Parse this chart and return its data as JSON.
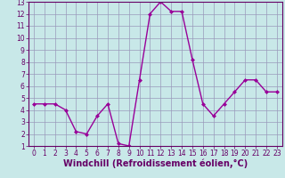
{
  "x": [
    0,
    1,
    2,
    3,
    4,
    5,
    6,
    7,
    8,
    9,
    10,
    11,
    12,
    13,
    14,
    15,
    16,
    17,
    18,
    19,
    20,
    21,
    22,
    23
  ],
  "y": [
    4.5,
    4.5,
    4.5,
    4.0,
    2.2,
    2.0,
    3.5,
    4.5,
    1.2,
    1.0,
    6.5,
    12.0,
    13.0,
    12.2,
    12.2,
    8.2,
    4.5,
    3.5,
    4.5,
    5.5,
    6.5,
    6.5,
    5.5,
    5.5
  ],
  "line_color": "#990099",
  "marker": "D",
  "marker_size": 2,
  "bg_color": "#c8e8e8",
  "grid_color": "#9999bb",
  "xlabel": "Windchill (Refroidissement éolien,°C)",
  "xlim": [
    -0.5,
    23.5
  ],
  "ylim": [
    1,
    13
  ],
  "yticks": [
    1,
    2,
    3,
    4,
    5,
    6,
    7,
    8,
    9,
    10,
    11,
    12,
    13
  ],
  "xticks": [
    0,
    1,
    2,
    3,
    4,
    5,
    6,
    7,
    8,
    9,
    10,
    11,
    12,
    13,
    14,
    15,
    16,
    17,
    18,
    19,
    20,
    21,
    22,
    23
  ],
  "tick_label_color": "#660066",
  "axis_label_color": "#660066",
  "spine_color": "#660066",
  "xlabel_fontsize": 7,
  "tick_fontsize": 5.5,
  "linewidth": 1.0
}
